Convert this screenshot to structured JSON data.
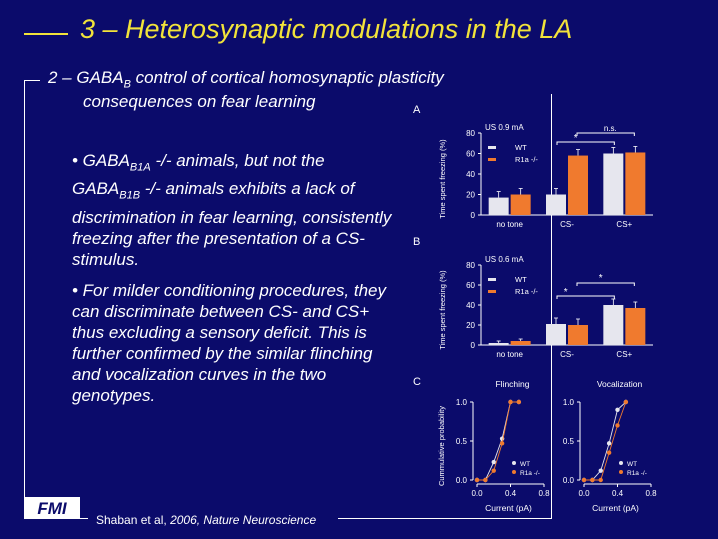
{
  "slide": {
    "title": "3 – Heterosynaptic modulations in the LA",
    "subtitle_line1_prefix": "2 – GABA",
    "subtitle_line1_sub": "B",
    "subtitle_line1_suffix": " control of cortical homosynaptic plasticity",
    "subtitle_line2": "consequences on fear learning",
    "citation_prefix": "Shaban et al, ",
    "citation_italic": "2006, Nature Neuroscience",
    "logo_text": "FMI"
  },
  "bullets": [
    {
      "t1": "• GABA",
      "s1": "B1A",
      "t2": " -/- animals, but not the GABA",
      "s2": "B1B",
      "t3": " -/- animals exhibits a lack of discrimination in fear learning, consistently freezing after the presentation of a CS- stimulus."
    },
    {
      "t1": "• For milder conditioning procedures, they can discriminate between CS- and CS+ thus excluding a sensory deficit. This is further confirmed by the similar flinching and vocalization curves in the two genotypes."
    }
  ],
  "colors": {
    "background": "#0b0b6b",
    "title": "#f2e33a",
    "wt": "#e6e6ee",
    "r1a": "#f07a2e"
  },
  "chart_data": [
    {
      "panel_label": "A",
      "type": "bar",
      "ylabel": "Time spent freezing (%)",
      "condition": "US 0.9 mA",
      "categories": [
        "no tone",
        "CS-",
        "CS+"
      ],
      "series": [
        {
          "name": "WT",
          "values": [
            17,
            20,
            60
          ]
        },
        {
          "name": "R1a -/-",
          "values": [
            20,
            58,
            61
          ]
        }
      ],
      "ylim": [
        0,
        80
      ],
      "yticks": [
        0,
        20,
        40,
        60,
        80
      ],
      "annotations": [
        "*",
        "n.s."
      ]
    },
    {
      "panel_label": "B",
      "type": "bar",
      "ylabel": "Time spent freezing (%)",
      "condition": "US 0.6 mA",
      "categories": [
        "no tone",
        "CS-",
        "CS+"
      ],
      "series": [
        {
          "name": "WT",
          "values": [
            2,
            21,
            40
          ]
        },
        {
          "name": "R1a -/-",
          "values": [
            4,
            20,
            37
          ]
        }
      ],
      "ylim": [
        0,
        80
      ],
      "yticks": [
        0,
        20,
        40,
        60,
        80
      ],
      "annotations": [
        "*",
        "*"
      ]
    },
    {
      "panel_label": "C",
      "type": "line",
      "title": "Flinching",
      "ylabel": "Cummulative probability",
      "xlabel": "Current (pA)",
      "xlim": [
        0,
        0.8
      ],
      "ylim": [
        0,
        1
      ],
      "xticks": [
        "0.0",
        "0.4",
        "0.8"
      ],
      "yticks": [
        "0.0",
        "0.5",
        "1.0"
      ],
      "series": [
        {
          "name": "WT",
          "x": [
            0.0,
            0.1,
            0.2,
            0.3,
            0.4,
            0.5
          ],
          "y": [
            0.0,
            0.0,
            0.23,
            0.53,
            1.0,
            1.0
          ]
        },
        {
          "name": "R1a -/-",
          "x": [
            0.0,
            0.1,
            0.2,
            0.3,
            0.4,
            0.5
          ],
          "y": [
            0.0,
            0.0,
            0.12,
            0.47,
            1.0,
            1.0
          ]
        }
      ]
    },
    {
      "panel_label": "",
      "type": "line",
      "title": "Vocalization",
      "xlabel": "Current (pA)",
      "xlim": [
        0,
        0.8
      ],
      "ylim": [
        0,
        1
      ],
      "xticks": [
        "0.0",
        "0.4",
        "0.8"
      ],
      "yticks": [
        "0.0",
        "0.5",
        "1.0"
      ],
      "series": [
        {
          "name": "WT",
          "x": [
            0.0,
            0.1,
            0.2,
            0.3,
            0.4,
            0.5
          ],
          "y": [
            0.0,
            0.0,
            0.12,
            0.47,
            0.9,
            1.0
          ]
        },
        {
          "name": "R1a -/-",
          "x": [
            0.0,
            0.1,
            0.2,
            0.3,
            0.4,
            0.5
          ],
          "y": [
            0.0,
            0.0,
            0.0,
            0.35,
            0.7,
            1.0
          ]
        }
      ]
    }
  ]
}
